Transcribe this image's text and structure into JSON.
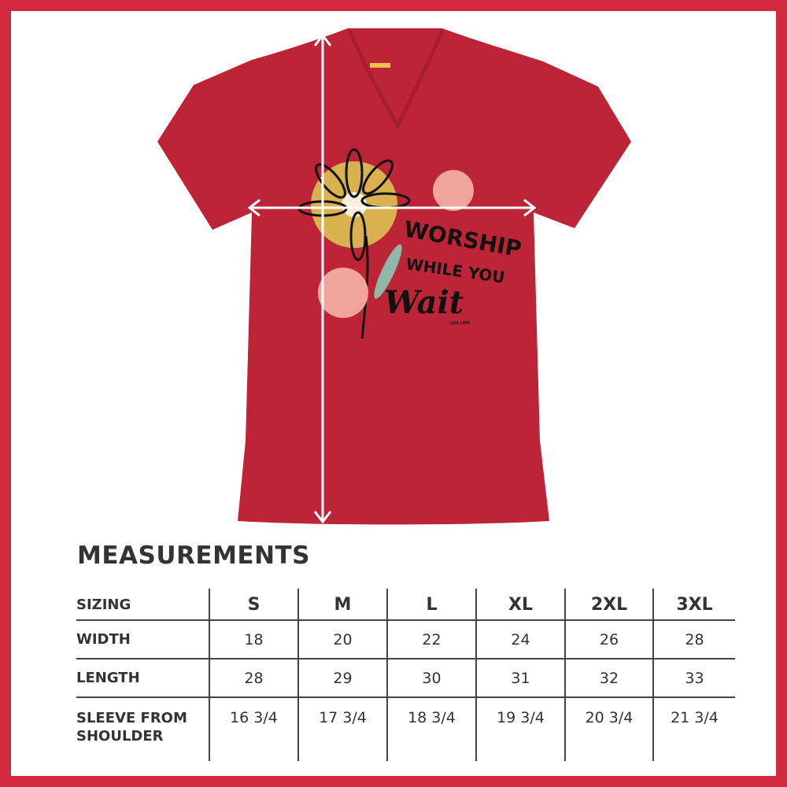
{
  "product": {
    "design_text": [
      "WORSHIP",
      "WHILE YOU",
      "Wait"
    ],
    "design_signature": "LGA LIFE",
    "shirt_color": "#bd2438",
    "frame_color": "#d22a3f"
  },
  "measurements": {
    "title": "MEASUREMENTS",
    "headers": [
      "SIZING",
      "S",
      "M",
      "L",
      "XL",
      "2XL",
      "3XL"
    ],
    "rows": [
      {
        "label": "WIDTH",
        "values": [
          "18",
          "20",
          "22",
          "24",
          "26",
          "28"
        ]
      },
      {
        "label": "LENGTH",
        "values": [
          "28",
          "29",
          "30",
          "31",
          "32",
          "33"
        ]
      },
      {
        "label_line1": "SLEEVE FROM",
        "label_line2": "SHOULDER",
        "values": [
          "16 3/4",
          "17 3/4",
          "18 3/4",
          "19 3/4",
          "20 3/4",
          "21 3/4"
        ]
      }
    ]
  }
}
